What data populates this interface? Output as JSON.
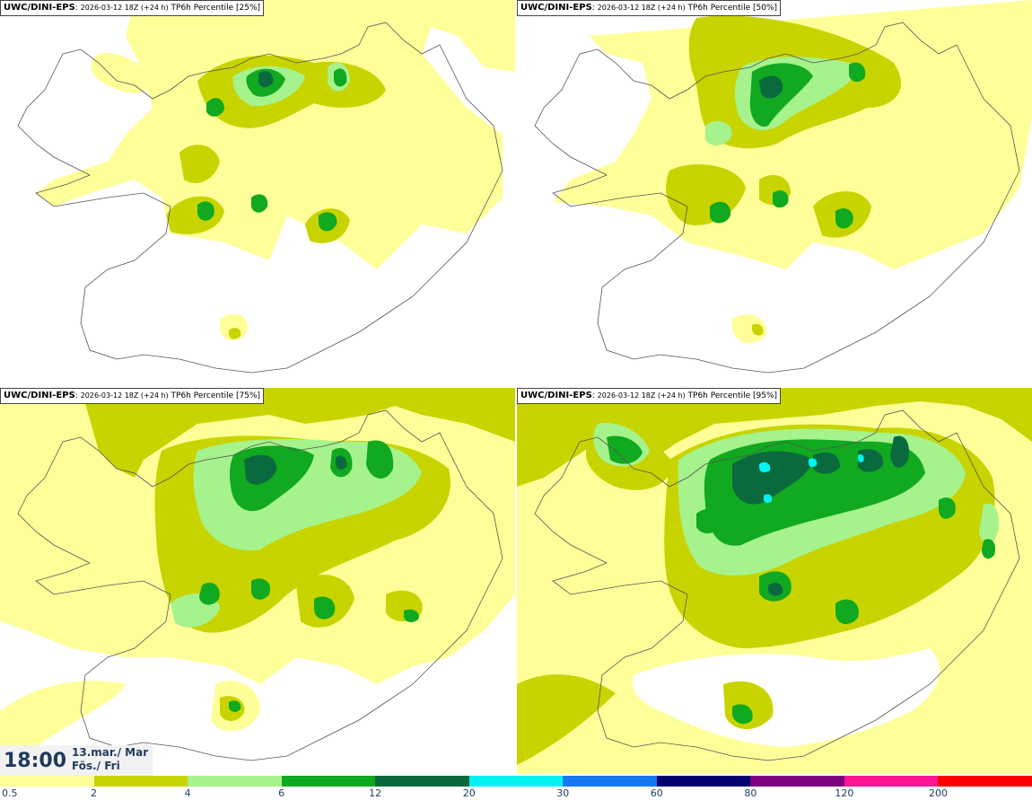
{
  "panels": [
    {
      "model": "UWC/DINI-EPS",
      "run": "2026-03-12 18Z (+24 h)",
      "label": "TP6h Percentile [25%]",
      "percentile": 25
    },
    {
      "model": "UWC/DINI-EPS",
      "run": "2026-03-12 18Z (+24 h)",
      "label": "TP6h Percentile [50%]",
      "percentile": 50
    },
    {
      "model": "UWC/DINI-EPS",
      "run": "2026-03-12 18Z (+24 h)",
      "label": "TP6h Percentile [75%]",
      "percentile": 75
    },
    {
      "model": "UWC/DINI-EPS",
      "run": "2026-03-12 18Z (+24 h)",
      "label": "TP6h Percentile [95%]",
      "percentile": 95
    }
  ],
  "time": {
    "clock": "18:00",
    "date": "13.mar./ Mar",
    "day": "Fös./ Fri"
  },
  "colorbar": {
    "ticks": [
      "0.5",
      "2",
      "4",
      "6",
      "12",
      "20",
      "30",
      "60",
      "80",
      "120",
      "200"
    ],
    "colors": [
      "#ffff99",
      "#c8d400",
      "#a6f28c",
      "#10a91f",
      "#0a6a3e",
      "#00f2f2",
      "#1478f0",
      "#00006e",
      "#7f007f",
      "#ff1493",
      "#ff0000"
    ]
  },
  "colors": {
    "light": "#ffff99",
    "olive": "#c8d400",
    "pale_green": "#a6f28c",
    "green": "#10a91f",
    "dark_green": "#0a6a3e",
    "cyan": "#00f2f2",
    "coast": "#555555"
  }
}
